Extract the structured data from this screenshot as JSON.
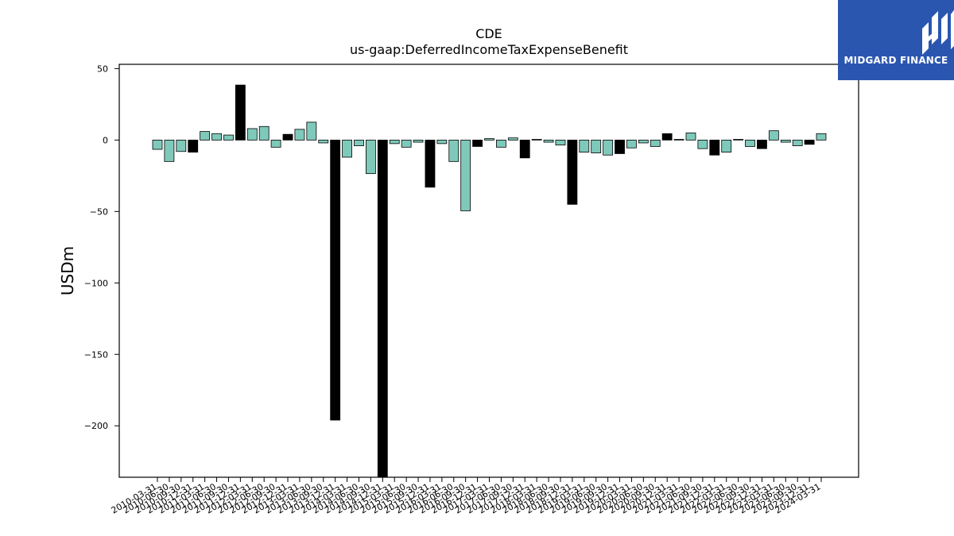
{
  "brand": {
    "name": "MIDGARD FINANCE",
    "logo_icon": "midgard-m-logo-icon",
    "background": "#2b56b0"
  },
  "chart_data": {
    "type": "bar",
    "title": "CDE",
    "subtitle": "us-gaap:DeferredIncomeTaxExpenseBenefit",
    "xlabel": "",
    "ylabel": "USDm",
    "ylim": [
      -236,
      53
    ],
    "yticks": [
      50,
      0,
      -50,
      -100,
      -150,
      -200
    ],
    "grid": false,
    "colors": {
      "duration": "#7fc9bb",
      "annual": "#000000",
      "edge": "#000000"
    },
    "categories": [
      "2010-03-31",
      "2010-06-30",
      "2010-09-30",
      "2010-12-31",
      "2011-03-31",
      "2011-06-30",
      "2011-09-30",
      "2011-12-31",
      "2012-03-31",
      "2012-06-30",
      "2012-09-30",
      "2012-12-31",
      "2013-03-31",
      "2013-06-30",
      "2013-09-30",
      "2013-12-31",
      "2014-03-31",
      "2014-06-30",
      "2014-09-30",
      "2014-12-31",
      "2015-03-31",
      "2015-06-30",
      "2015-09-30",
      "2015-12-31",
      "2016-03-31",
      "2016-06-30",
      "2016-09-30",
      "2016-12-31",
      "2017-03-31",
      "2017-06-30",
      "2017-09-30",
      "2017-12-31",
      "2018-03-31",
      "2018-06-30",
      "2018-09-30",
      "2018-12-31",
      "2019-03-31",
      "2019-06-30",
      "2019-09-30",
      "2019-12-31",
      "2020-03-31",
      "2020-06-30",
      "2020-09-30",
      "2020-12-31",
      "2021-03-31",
      "2021-06-30",
      "2021-09-30",
      "2021-12-31",
      "2022-03-31",
      "2022-06-30",
      "2022-09-30",
      "2022-12-31",
      "2023-03-31",
      "2023-06-30",
      "2023-09-30",
      "2023-12-31",
      "2024-03-31"
    ],
    "values": [
      -6.5,
      -15,
      -8,
      -8.5,
      6,
      4.5,
      3.5,
      38.5,
      8,
      9.5,
      -5,
      4,
      7.5,
      12.5,
      -2,
      -196,
      -12,
      -4,
      -23.5,
      -236,
      -2.5,
      -5,
      -1.5,
      -33,
      -2.5,
      -15,
      -49.5,
      -4.5,
      1,
      -5,
      1.5,
      -12.5,
      0.5,
      -1.5,
      -3.5,
      -45,
      -8.5,
      -9,
      -10.5,
      -9.5,
      -5.5,
      -2,
      -4.5,
      4.5,
      0.5,
      5,
      -6,
      -10.5,
      -8.5,
      0.5,
      -4.5,
      -6,
      6.5,
      -1.5,
      -4,
      -3,
      4.5
    ],
    "annual": [
      false,
      false,
      false,
      true,
      false,
      false,
      false,
      true,
      false,
      false,
      false,
      true,
      false,
      false,
      false,
      true,
      false,
      false,
      false,
      true,
      false,
      false,
      false,
      true,
      false,
      false,
      false,
      true,
      false,
      false,
      false,
      true,
      false,
      false,
      false,
      true,
      false,
      false,
      false,
      true,
      false,
      false,
      false,
      true,
      false,
      false,
      false,
      true,
      false,
      false,
      false,
      true,
      false,
      false,
      false,
      true,
      false
    ]
  }
}
